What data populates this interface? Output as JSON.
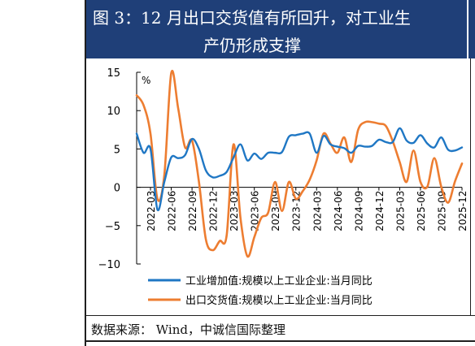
{
  "title": {
    "line1": "图 3：12 月出口交货值有所回升，对工业生",
    "line2": "产仍形成支撑"
  },
  "source": "数据来源： Wind，中诚信国际整理",
  "chart_data": {
    "type": "line",
    "unit_label": "%",
    "ylim": [
      -10,
      15
    ],
    "yticks": [
      15,
      10,
      5,
      0,
      -5,
      -10
    ],
    "ytick_labels": [
      "15",
      "10",
      "5",
      "0",
      "−5",
      "−10"
    ],
    "xtick_labels": [
      "2022-03",
      "2022-06",
      "2022-09",
      "2022-12",
      "2023-03",
      "2023-06",
      "2023-09",
      "2023-12",
      "2024-03",
      "2024-06",
      "2024-09",
      "2024-12",
      "2025-03",
      "2025-06",
      "2025-09",
      "2025-12"
    ],
    "x_months": [
      "2022-01",
      "2022-02",
      "2022-03",
      "2022-04",
      "2022-05",
      "2022-06",
      "2022-07",
      "2022-08",
      "2022-09",
      "2022-10",
      "2022-11",
      "2022-12",
      "2023-01",
      "2023-02",
      "2023-03",
      "2023-04",
      "2023-05",
      "2023-06",
      "2023-07",
      "2023-08",
      "2023-09",
      "2023-10",
      "2023-11",
      "2023-12",
      "2024-01",
      "2024-02",
      "2024-03",
      "2024-04",
      "2024-05",
      "2024-06",
      "2024-07",
      "2024-08",
      "2024-09",
      "2024-10",
      "2024-11",
      "2024-12",
      "2025-01",
      "2025-02",
      "2025-03",
      "2025-04",
      "2025-05",
      "2025-06",
      "2025-07",
      "2025-08",
      "2025-09",
      "2025-10",
      "2025-11",
      "2025-12"
    ],
    "legend_position": "bottom",
    "grid": false,
    "series": [
      {
        "name": "工业增加值:规模以上工业企业:当月同比",
        "color": "#1f77c4",
        "values": [
          7.0,
          4.5,
          5.0,
          -2.9,
          0.7,
          3.9,
          3.8,
          4.2,
          6.3,
          5.0,
          2.2,
          1.3,
          1.5,
          2.0,
          3.9,
          5.6,
          3.5,
          4.4,
          3.7,
          4.5,
          4.5,
          4.6,
          6.6,
          6.8,
          7.0,
          7.0,
          4.5,
          6.7,
          5.6,
          5.3,
          5.1,
          4.5,
          5.4,
          5.3,
          5.4,
          6.2,
          5.9,
          5.9,
          7.7,
          6.1,
          5.8,
          6.8,
          5.7,
          5.2,
          6.5,
          4.9,
          4.8,
          5.2
        ]
      },
      {
        "name": "出口交货值:规模以上工业企业:当月同比",
        "color": "#ed7d31",
        "values": [
          12.0,
          10.7,
          7.0,
          -1.5,
          1.6,
          14.9,
          10.3,
          5.2,
          6.1,
          0.7,
          -6.8,
          -8.2,
          -7.0,
          -6.3,
          5.6,
          -4.0,
          -9.0,
          -6.5,
          -4.0,
          -3.3,
          0.7,
          -3.1,
          0.7,
          -1.5,
          -0.5,
          1.0,
          3.5,
          7.0,
          5.7,
          4.5,
          6.5,
          3.3,
          7.5,
          8.5,
          8.5,
          8.3,
          8.0,
          6.0,
          3.3,
          0.7,
          4.8,
          0.7,
          0.1,
          3.8,
          0.1,
          -2.0,
          0.8,
          3.1
        ]
      }
    ]
  }
}
